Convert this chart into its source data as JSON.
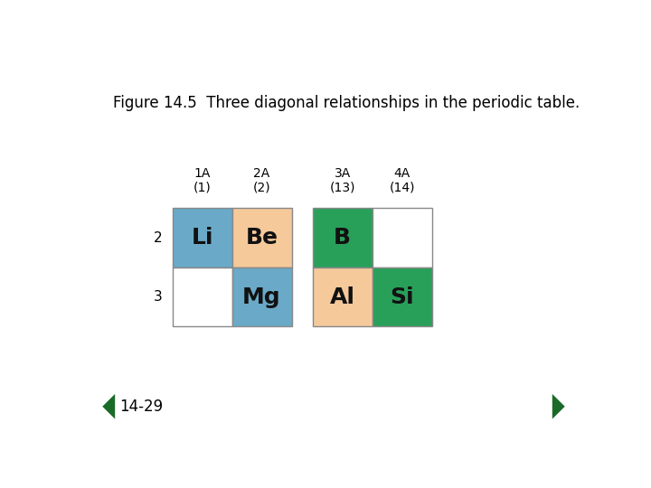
{
  "title": "Figure 14.5  Three diagonal relationships in the periodic table.",
  "title_fontsize": 12,
  "background_color": "#ffffff",
  "footer_text": "14-29",
  "footer_fontsize": 12,
  "color_blue": "#6aaac8",
  "color_peach": "#f5c99a",
  "color_green": "#29a05a",
  "color_white": "#ffffff",
  "col_headers": [
    "1A\n(1)",
    "2A\n(2)",
    "3A\n(13)",
    "4A\n(14)"
  ],
  "row_headers": [
    "2",
    "3"
  ],
  "cells": [
    {
      "row": 0,
      "col": 0,
      "symbol": "Li",
      "color": "blue"
    },
    {
      "row": 0,
      "col": 1,
      "symbol": "Be",
      "color": "peach"
    },
    {
      "row": 0,
      "col": 2,
      "symbol": "B",
      "color": "green"
    },
    {
      "row": 0,
      "col": 3,
      "symbol": "",
      "color": "white"
    },
    {
      "row": 1,
      "col": 0,
      "symbol": "",
      "color": "white"
    },
    {
      "row": 1,
      "col": 1,
      "symbol": "Mg",
      "color": "blue"
    },
    {
      "row": 1,
      "col": 2,
      "symbol": "Al",
      "color": "peach"
    },
    {
      "row": 1,
      "col": 3,
      "symbol": "Si",
      "color": "green"
    }
  ],
  "symbol_fontsize": 18,
  "header_fontsize": 10,
  "row_label_fontsize": 11
}
